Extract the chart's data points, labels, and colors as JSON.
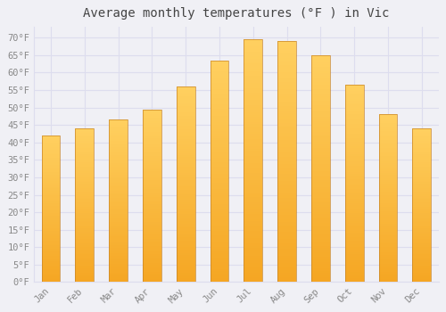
{
  "title": "Average monthly temperatures (°F ) in Vic",
  "months": [
    "Jan",
    "Feb",
    "Mar",
    "Apr",
    "May",
    "Jun",
    "Jul",
    "Aug",
    "Sep",
    "Oct",
    "Nov",
    "Dec"
  ],
  "values": [
    42,
    44,
    46.5,
    49.5,
    56,
    63.5,
    69.5,
    69,
    65,
    56.5,
    48,
    44
  ],
  "bar_color_bottom": "#F5A623",
  "bar_color_top": "#FFD060",
  "bar_edge_color": "#C8862A",
  "ylim": [
    0,
    73
  ],
  "yticks": [
    0,
    5,
    10,
    15,
    20,
    25,
    30,
    35,
    40,
    45,
    50,
    55,
    60,
    65,
    70
  ],
  "ytick_labels": [
    "0°F",
    "5°F",
    "10°F",
    "15°F",
    "20°F",
    "25°F",
    "30°F",
    "35°F",
    "40°F",
    "45°F",
    "50°F",
    "55°F",
    "60°F",
    "65°F",
    "70°F"
  ],
  "background_color": "#F0F0F5",
  "plot_bg_color": "#F0F0F5",
  "grid_color": "#DDDDEE",
  "tick_label_color": "#888888",
  "title_color": "#444444",
  "title_fontsize": 10,
  "tick_fontsize": 7.5,
  "bar_width": 0.55
}
